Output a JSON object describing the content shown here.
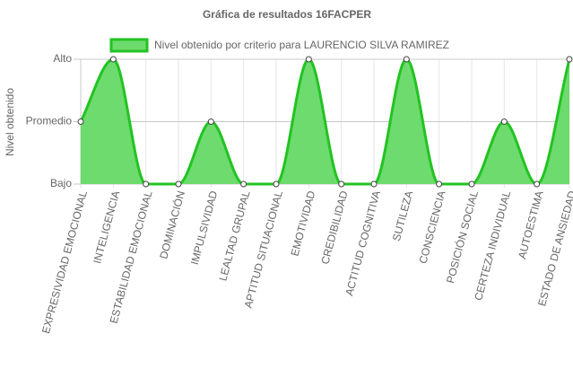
{
  "chart_data": {
    "type": "area",
    "title": "Gráfica de resultados 16FACPER",
    "y_label": "Nivel obtenido",
    "categories": [
      "EXPRESIVIDAD EMOCIONAL",
      "INTELIGENCIA",
      "ESTABILIDAD EMOCIONAL",
      "DOMINACIÓN",
      "IMPULSIVIDAD",
      "LEALTAD GRUPAL",
      "APTITUD SITUACIONAL",
      "EMOTIVIDAD",
      "CREDIBILIDAD",
      "ACTITUD COGNITIVA",
      "SUTILEZA",
      "CONSCIENCIA",
      "POSICIÓN SOCIAL",
      "CERTEZA INDIVIDUAL",
      "AUTOESTIMA",
      "ESTADO DE ANSIEDAD"
    ],
    "series": [
      {
        "name": "Nivel obtenido por criterio para LAURENCIO SILVA RAMIREZ",
        "color": "#22c322",
        "fill": "#6ddb6d",
        "values": [
          1,
          2,
          0,
          0,
          1,
          0,
          0,
          2,
          0,
          0,
          2,
          0,
          0,
          1,
          0,
          2
        ]
      }
    ],
    "ylim": [
      0,
      2
    ],
    "yticks": [
      {
        "value": 0,
        "label": "Bajo"
      },
      {
        "value": 1,
        "label": "Promedio"
      },
      {
        "value": 2,
        "label": "Alto"
      }
    ],
    "grid": true,
    "legend": "top"
  }
}
